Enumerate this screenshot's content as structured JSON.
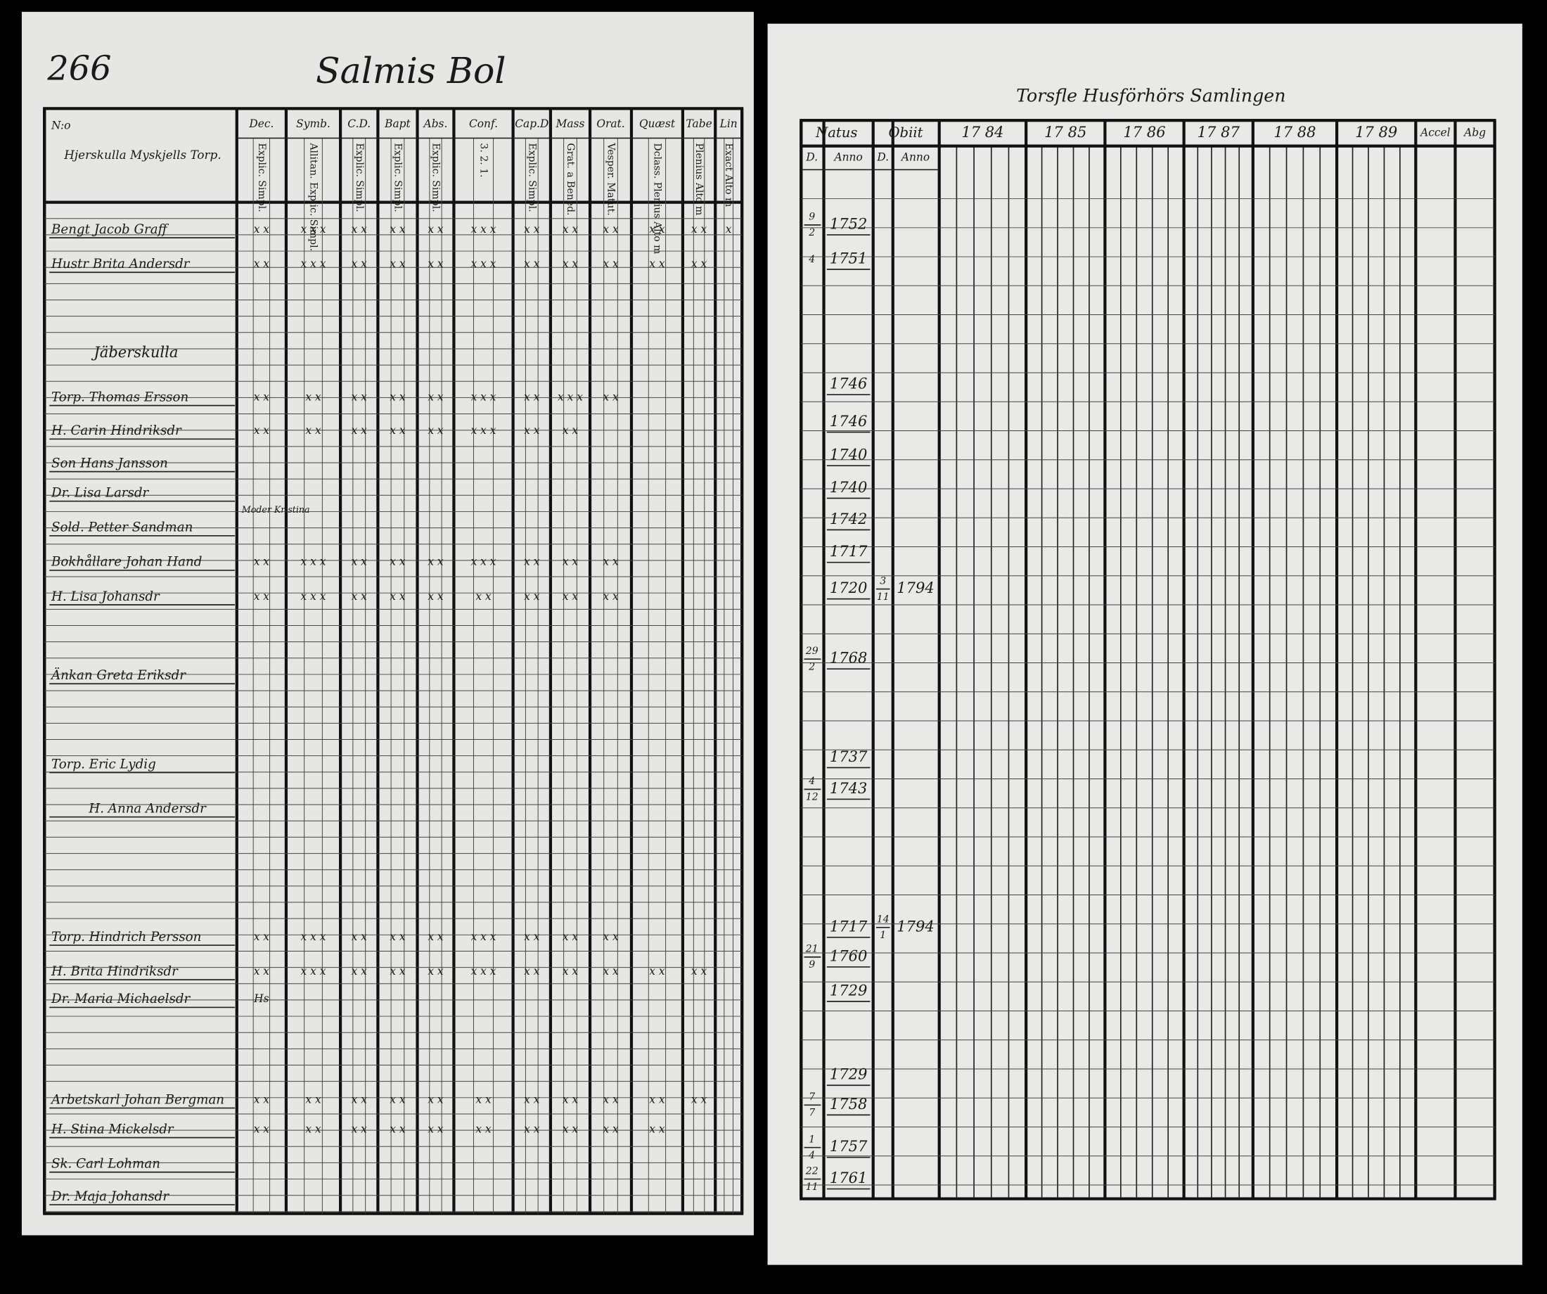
{
  "left_page": {
    "page_number": "266",
    "title": "Salmis Bol",
    "corner_label": "N:o",
    "name_header": "Hjerskulla Myskjells Torp.",
    "columns": [
      {
        "head": "Dec.",
        "sub": "Explic. Simpl."
      },
      {
        "head": "Symb.",
        "sub": "Allitan. Explic. Simpl."
      },
      {
        "head": "C.D.",
        "sub": "Explic. Simpl."
      },
      {
        "head": "Bapt",
        "sub": "Explic. Simpl."
      },
      {
        "head": "Abs.",
        "sub": "Explic. Simpl."
      },
      {
        "head": "Conf.",
        "sub": "3. 2. 1."
      },
      {
        "head": "Cap.D",
        "sub": "Explic. Simpl."
      },
      {
        "head": "Mass",
        "sub": "Grat. a Bened."
      },
      {
        "head": "Orat.",
        "sub": "Vesper. Matut."
      },
      {
        "head": "Quæst",
        "sub": "Dclass. Plenius Alto m"
      },
      {
        "head": "Tabe",
        "sub": "Plenius Alto m"
      },
      {
        "head": "Lin",
        "sub": "Exact Alto m"
      }
    ],
    "section_heading": "Jäberskulla",
    "rows": [
      {
        "name": "Bengt Jacob Graff",
        "marks": [
          "x x",
          "x x x",
          "x x",
          "x x",
          "x x",
          "x x x",
          "x x",
          "x x",
          "x x",
          "x x",
          "x x",
          "x"
        ]
      },
      {
        "name": "Hustr Brita Andersdr",
        "marks": [
          "x x",
          "x x x",
          "x x",
          "x x",
          "x x",
          "x x x",
          "x x",
          "x x",
          "x x",
          "x x",
          "x x"
        ]
      },
      {
        "name": "Torp. Thomas Ersson",
        "marks": [
          "x x",
          "x x",
          "x x",
          "x x",
          "x x",
          "x x x",
          "x x",
          "x x x",
          "x x"
        ]
      },
      {
        "name": "H. Carin Hindriksdr",
        "marks": [
          "x x",
          "x x",
          "x x",
          "x x",
          "x x",
          "x x x",
          "x x",
          "x x"
        ]
      },
      {
        "name": "Son Hans Jansson"
      },
      {
        "name": "Dr. Lisa Larsdr"
      },
      {
        "name": "Sold. Petter Sandman",
        "note": "Moder Kristina"
      },
      {
        "name": "Bokhållare Johan Hand",
        "marks": [
          "x x",
          "x x x",
          "x x",
          "x x",
          "x x",
          "x x x",
          "x x",
          "x x",
          "x x"
        ]
      },
      {
        "name": "H. Lisa Johansdr",
        "marks": [
          "x x",
          "x x x",
          "x x",
          "x x",
          "x x",
          "x x",
          "x x",
          "x x",
          "x x"
        ]
      },
      {
        "name": "Änkan Greta Eriksdr"
      },
      {
        "name": "Torp. Eric Lydig"
      },
      {
        "name": "H. Anna Andersdr"
      },
      {
        "name": "Torp. Hindrich Persson",
        "marks": [
          "x x",
          "x x x",
          "x x",
          "x x",
          "x x",
          "x x x",
          "x x",
          "x x",
          "x x"
        ]
      },
      {
        "name": "H. Brita Hindriksdr",
        "marks": [
          "x x",
          "x x x",
          "x x",
          "x x",
          "x x",
          "x x x",
          "x x",
          "x x",
          "x x",
          "x x",
          "x x"
        ]
      },
      {
        "name": "Dr. Maria Michaelsdr",
        "marks": [
          "Hs"
        ]
      },
      {
        "name": "Arbetskarl Johan Bergman",
        "marks": [
          "x x",
          "x x",
          "x x",
          "x x",
          "x x",
          "x x",
          "x x",
          "x x",
          "x x",
          "x x",
          "x x"
        ]
      },
      {
        "name": "H. Stina Mickelsdr",
        "marks": [
          "x x",
          "x x",
          "x x",
          "x x",
          "x x",
          "x x",
          "x x",
          "x x",
          "x x",
          "x x"
        ]
      },
      {
        "name": "Sk. Carl Lohman"
      },
      {
        "name": "Dr. Maja Johansdr"
      }
    ]
  },
  "right_page": {
    "title": "Torsfle Husförhörs Samlingen",
    "natus": "Natus",
    "obiit": "Obiit",
    "day_header": "D.",
    "year_header": "Anno",
    "years": [
      "17 84",
      "17 85",
      "17 86",
      "17 87",
      "17 88",
      "17 89"
    ],
    "accel": "Accel",
    "abg": "Abg",
    "entries": [
      {
        "day": "9",
        "month": "2",
        "year": "1752"
      },
      {
        "day": "4",
        "year": "1751"
      },
      {
        "year": "1746"
      },
      {
        "year": "1746"
      },
      {
        "year": "1740"
      },
      {
        "year": "1740"
      },
      {
        "year": "1742"
      },
      {
        "year": "1717"
      },
      {
        "year": "1720",
        "death_day": "3",
        "death_month": "11",
        "death_year": "1794"
      },
      {
        "day": "29",
        "month": "2",
        "year": "1768"
      },
      {
        "year": "1737"
      },
      {
        "day": "4",
        "month": "12",
        "year": "1743"
      },
      {
        "year": "1717",
        "death_day": "14",
        "death_month": "1",
        "death_year": "1794"
      },
      {
        "day": "21",
        "month": "9",
        "year": "1760"
      },
      {
        "year": "1729"
      },
      {
        "year": "1729"
      },
      {
        "day": "7",
        "month": "7",
        "year": "1758"
      },
      {
        "day": "1",
        "month": "4",
        "year": "1757"
      },
      {
        "day": "22",
        "month": "11",
        "year": "1761"
      }
    ]
  }
}
